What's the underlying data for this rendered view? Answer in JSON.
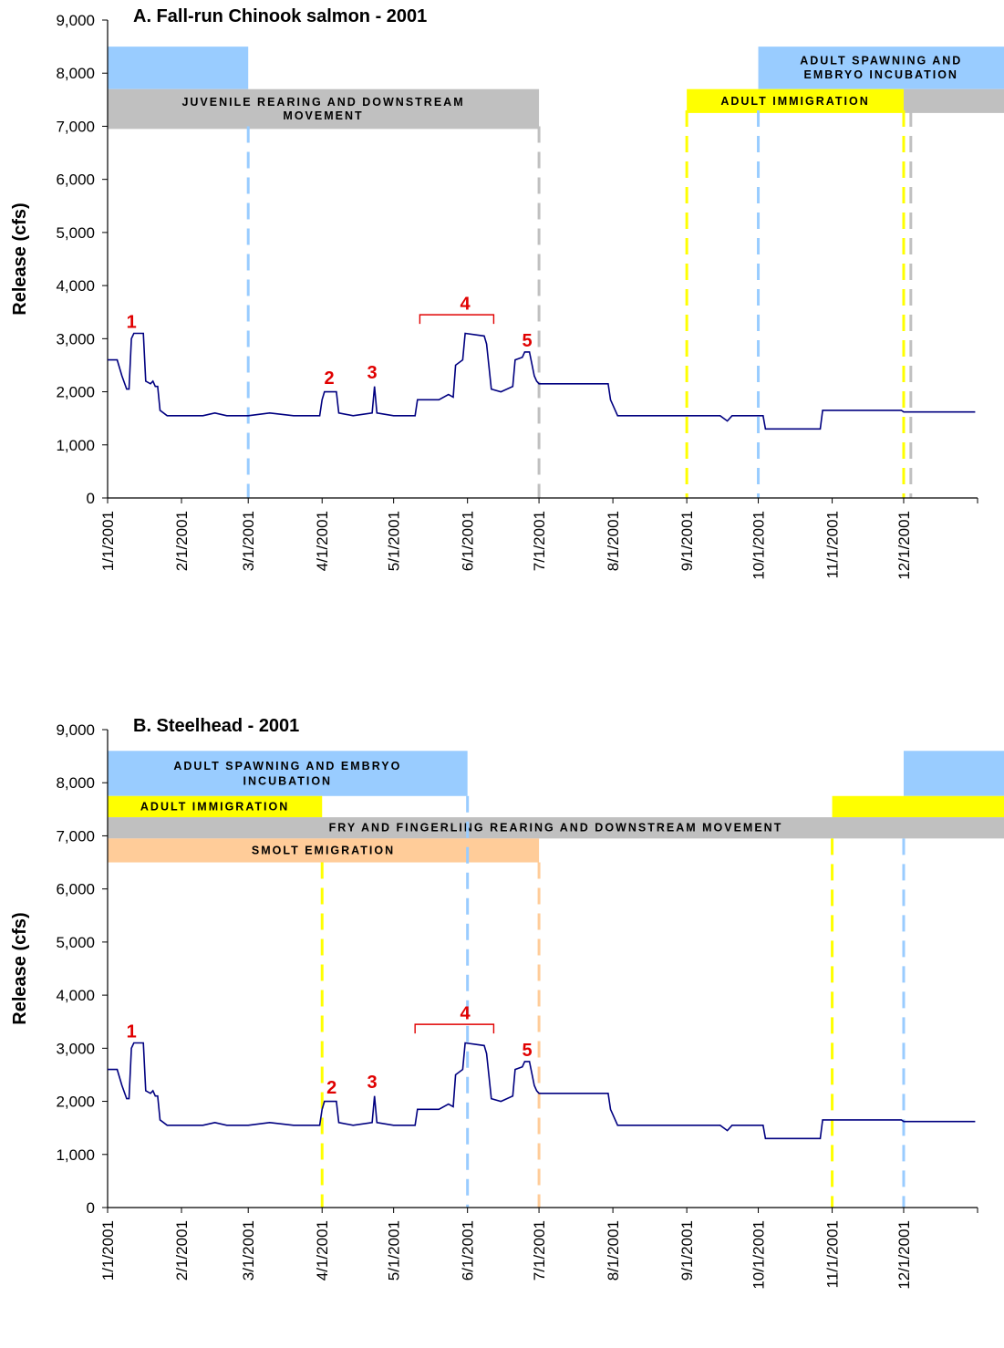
{
  "chart_data": [
    {
      "type": "line",
      "title": "A.  Fall-run Chinook salmon - 2001",
      "ylabel": "Release (cfs)",
      "xlabel": "",
      "ylim": [
        0,
        9000
      ],
      "yticks": [
        "0",
        "1,000",
        "2,000",
        "3,000",
        "4,000",
        "5,000",
        "6,000",
        "7,000",
        "8,000",
        "9,000"
      ],
      "xticks": [
        "1/1/2001",
        "2/1/2001",
        "3/1/2001",
        "4/1/2001",
        "5/1/2001",
        "6/1/2001",
        "7/1/2001",
        "8/1/2001",
        "9/1/2001",
        "10/1/2001",
        "11/1/2001",
        "12/1/2001"
      ],
      "grid": false,
      "series": [
        {
          "color": "#000080",
          "points": [
            [
              "1/1/2001",
              2600
            ],
            [
              "1/5/2001",
              2600
            ],
            [
              "1/7/2001",
              2300
            ],
            [
              "1/9/2001",
              2050
            ],
            [
              "1/10/2001",
              2050
            ],
            [
              "1/11/2001",
              3000
            ],
            [
              "1/12/2001",
              3100
            ],
            [
              "1/16/2001",
              3100
            ],
            [
              "1/17/2001",
              2200
            ],
            [
              "1/19/2001",
              2150
            ],
            [
              "1/20/2001",
              2200
            ],
            [
              "1/21/2001",
              2100
            ],
            [
              "1/22/2001",
              2100
            ],
            [
              "1/23/2001",
              1650
            ],
            [
              "1/26/2001",
              1550
            ],
            [
              "2/10/2001",
              1550
            ],
            [
              "2/15/2001",
              1600
            ],
            [
              "2/20/2001",
              1550
            ],
            [
              "3/1/2001",
              1550
            ],
            [
              "3/10/2001",
              1600
            ],
            [
              "3/20/2001",
              1550
            ],
            [
              "3/31/2001",
              1550
            ],
            [
              "4/1/2001",
              1850
            ],
            [
              "4/2/2001",
              2000
            ],
            [
              "4/7/2001",
              2000
            ],
            [
              "4/8/2001",
              1600
            ],
            [
              "4/14/2001",
              1550
            ],
            [
              "4/22/2001",
              1600
            ],
            [
              "4/23/2001",
              2100
            ],
            [
              "4/24/2001",
              1600
            ],
            [
              "5/1/2001",
              1550
            ],
            [
              "5/10/2001",
              1550
            ],
            [
              "5/11/2001",
              1850
            ],
            [
              "5/20/2001",
              1850
            ],
            [
              "5/24/2001",
              1950
            ],
            [
              "5/26/2001",
              1900
            ],
            [
              "5/27/2001",
              2500
            ],
            [
              "5/30/2001",
              2600
            ],
            [
              "5/31/2001",
              3100
            ],
            [
              "6/8/2001",
              3050
            ],
            [
              "6/9/2001",
              2900
            ],
            [
              "6/11/2001",
              2050
            ],
            [
              "6/15/2001",
              2000
            ],
            [
              "6/20/2001",
              2100
            ],
            [
              "6/21/2001",
              2600
            ],
            [
              "6/24/2001",
              2650
            ],
            [
              "6/25/2001",
              2750
            ],
            [
              "6/27/2001",
              2750
            ],
            [
              "6/29/2001",
              2300
            ],
            [
              "6/30/2001",
              2200
            ],
            [
              "7/1/2001",
              2150
            ],
            [
              "7/15/2001",
              2150
            ],
            [
              "7/30/2001",
              2150
            ],
            [
              "7/31/2001",
              1850
            ],
            [
              "8/3/2001",
              1550
            ],
            [
              "8/15/2001",
              1550
            ],
            [
              "9/1/2001",
              1550
            ],
            [
              "9/15/2001",
              1550
            ],
            [
              "9/18/2001",
              1450
            ],
            [
              "9/20/2001",
              1550
            ],
            [
              "10/3/2001",
              1550
            ],
            [
              "10/4/2001",
              1300
            ],
            [
              "10/27/2001",
              1300
            ],
            [
              "10/28/2001",
              1650
            ],
            [
              "11/30/2001",
              1650
            ],
            [
              "12/1/2001",
              1620
            ],
            [
              "12/31/2001",
              1620
            ]
          ]
        }
      ],
      "bands": [
        {
          "label_lines": [],
          "start": "1/1/2001",
          "end": "3/1/2001",
          "y_top": 8500,
          "y_bottom": 7700,
          "color": "#99ccff"
        },
        {
          "label_lines": [
            "JUVENILE REARING AND DOWNSTREAM",
            "MOVEMENT"
          ],
          "start": "1/1/2001",
          "end": "7/1/2001",
          "y_top": 7700,
          "y_bottom": 6950,
          "color": "#c0c0c0"
        },
        {
          "label_lines": [
            "ADULT SPAWNING AND",
            "EMBRYO INCUBATION"
          ],
          "start": "10/1/2001",
          "end": "12/31/2001",
          "y_top": 8500,
          "y_bottom": 7700,
          "color": "#99ccff"
        },
        {
          "label_lines": [
            "ADULT IMMIGRATION"
          ],
          "start": "9/1/2001",
          "end": "12/1/2001",
          "y_top": 7700,
          "y_bottom": 7250,
          "color": "#ffff00"
        },
        {
          "label_lines": [],
          "start": "12/1/2001",
          "end": "12/31/2001",
          "y_top": 7700,
          "y_bottom": 7250,
          "color": "#c0c0c0"
        }
      ],
      "vlines": [
        {
          "x": "3/1/2001",
          "color": "#99ccff",
          "y_top": 7000
        },
        {
          "x": "7/1/2001",
          "color": "#c0c0c0",
          "y_top": 7000
        },
        {
          "x": "9/1/2001",
          "color": "#ffff00",
          "y_top": 7300
        },
        {
          "x": "10/1/2001",
          "color": "#99ccff",
          "y_top": 7300
        },
        {
          "x": "12/1/2001",
          "color": "#ffff00",
          "y_top": 7300
        },
        {
          "x": "12/4/2001",
          "color": "#c0c0c0",
          "y_top": 7300
        }
      ],
      "annotations": [
        {
          "text": "1",
          "x": "1/11/2001",
          "y": 3200
        },
        {
          "text": "2",
          "x": "4/4/2001",
          "y": 2150
        },
        {
          "text": "3",
          "x": "4/22/2001",
          "y": 2250
        },
        {
          "text": "4",
          "x": "5/31/2001",
          "y": 3550
        },
        {
          "text": "5",
          "x": "6/26/2001",
          "y": 2850
        }
      ],
      "bracket": {
        "x_start": "5/12/2001",
        "x_end": "6/12/2001",
        "y": 3450,
        "color": "#e00000"
      }
    },
    {
      "type": "line",
      "title": "B.  Steelhead - 2001",
      "ylabel": "Release (cfs)",
      "xlabel": "",
      "ylim": [
        0,
        9000
      ],
      "yticks": [
        "0",
        "1,000",
        "2,000",
        "3,000",
        "4,000",
        "5,000",
        "6,000",
        "7,000",
        "8,000",
        "9,000"
      ],
      "xticks": [
        "1/1/2001",
        "2/1/2001",
        "3/1/2001",
        "4/1/2001",
        "5/1/2001",
        "6/1/2001",
        "7/1/2001",
        "8/1/2001",
        "9/1/2001",
        "10/1/2001",
        "11/1/2001",
        "12/1/2001"
      ],
      "grid": false,
      "series": [
        {
          "color": "#000080",
          "points": [
            [
              "1/1/2001",
              2600
            ],
            [
              "1/5/2001",
              2600
            ],
            [
              "1/7/2001",
              2300
            ],
            [
              "1/9/2001",
              2050
            ],
            [
              "1/10/2001",
              2050
            ],
            [
              "1/11/2001",
              3000
            ],
            [
              "1/12/2001",
              3100
            ],
            [
              "1/16/2001",
              3100
            ],
            [
              "1/17/2001",
              2200
            ],
            [
              "1/19/2001",
              2150
            ],
            [
              "1/20/2001",
              2200
            ],
            [
              "1/21/2001",
              2100
            ],
            [
              "1/22/2001",
              2100
            ],
            [
              "1/23/2001",
              1650
            ],
            [
              "1/26/2001",
              1550
            ],
            [
              "2/10/2001",
              1550
            ],
            [
              "2/15/2001",
              1600
            ],
            [
              "2/20/2001",
              1550
            ],
            [
              "3/1/2001",
              1550
            ],
            [
              "3/10/2001",
              1600
            ],
            [
              "3/20/2001",
              1550
            ],
            [
              "3/31/2001",
              1550
            ],
            [
              "4/1/2001",
              1850
            ],
            [
              "4/2/2001",
              2000
            ],
            [
              "4/7/2001",
              2000
            ],
            [
              "4/8/2001",
              1600
            ],
            [
              "4/14/2001",
              1550
            ],
            [
              "4/22/2001",
              1600
            ],
            [
              "4/23/2001",
              2100
            ],
            [
              "4/24/2001",
              1600
            ],
            [
              "5/1/2001",
              1550
            ],
            [
              "5/10/2001",
              1550
            ],
            [
              "5/11/2001",
              1850
            ],
            [
              "5/20/2001",
              1850
            ],
            [
              "5/24/2001",
              1950
            ],
            [
              "5/26/2001",
              1900
            ],
            [
              "5/27/2001",
              2500
            ],
            [
              "5/30/2001",
              2600
            ],
            [
              "5/31/2001",
              3100
            ],
            [
              "6/8/2001",
              3050
            ],
            [
              "6/9/2001",
              2900
            ],
            [
              "6/11/2001",
              2050
            ],
            [
              "6/15/2001",
              2000
            ],
            [
              "6/20/2001",
              2100
            ],
            [
              "6/21/2001",
              2600
            ],
            [
              "6/24/2001",
              2650
            ],
            [
              "6/25/2001",
              2750
            ],
            [
              "6/27/2001",
              2750
            ],
            [
              "6/29/2001",
              2300
            ],
            [
              "6/30/2001",
              2200
            ],
            [
              "7/1/2001",
              2150
            ],
            [
              "7/15/2001",
              2150
            ],
            [
              "7/30/2001",
              2150
            ],
            [
              "7/31/2001",
              1850
            ],
            [
              "8/3/2001",
              1550
            ],
            [
              "8/15/2001",
              1550
            ],
            [
              "9/1/2001",
              1550
            ],
            [
              "9/15/2001",
              1550
            ],
            [
              "9/18/2001",
              1450
            ],
            [
              "9/20/2001",
              1550
            ],
            [
              "10/3/2001",
              1550
            ],
            [
              "10/4/2001",
              1300
            ],
            [
              "10/27/2001",
              1300
            ],
            [
              "10/28/2001",
              1650
            ],
            [
              "11/30/2001",
              1650
            ],
            [
              "12/1/2001",
              1620
            ],
            [
              "12/31/2001",
              1620
            ]
          ]
        }
      ],
      "bands": [
        {
          "label_lines": [
            "ADULT SPAWNING AND EMBRYO",
            "INCUBATION"
          ],
          "start": "1/1/2001",
          "end": "6/1/2001",
          "y_top": 8600,
          "y_bottom": 7750,
          "color": "#99ccff"
        },
        {
          "label_lines": [],
          "start": "12/1/2001",
          "end": "12/31/2001",
          "y_top": 8600,
          "y_bottom": 7750,
          "color": "#99ccff"
        },
        {
          "label_lines": [
            "ADULT IMMIGRATION"
          ],
          "start": "1/1/2001",
          "end": "4/1/2001",
          "y_top": 7750,
          "y_bottom": 7350,
          "color": "#ffff00"
        },
        {
          "label_lines": [],
          "start": "11/1/2001",
          "end": "12/31/2001",
          "y_top": 7750,
          "y_bottom": 7350,
          "color": "#ffff00"
        },
        {
          "label_lines": [
            "FRY AND FINGERLING REARING AND DOWNSTREAM MOVEMENT"
          ],
          "start": "1/1/2001",
          "end": "12/31/2001",
          "y_top": 7350,
          "y_bottom": 6950,
          "color": "#c0c0c0"
        },
        {
          "label_lines": [
            "SMOLT EMIGRATION"
          ],
          "start": "1/1/2001",
          "end": "7/1/2001",
          "y_top": 6950,
          "y_bottom": 6500,
          "color": "#ffcc99"
        }
      ],
      "vlines": [
        {
          "x": "4/1/2001",
          "color": "#ffff00",
          "y_top": 6500
        },
        {
          "x": "6/1/2001",
          "color": "#99ccff",
          "y_top": 7750
        },
        {
          "x": "7/1/2001",
          "color": "#ffcc99",
          "y_top": 6500
        },
        {
          "x": "11/1/2001",
          "color": "#ffff00",
          "y_top": 6950
        },
        {
          "x": "12/1/2001",
          "color": "#99ccff",
          "y_top": 6950
        }
      ],
      "annotations": [
        {
          "text": "1",
          "x": "1/11/2001",
          "y": 3200
        },
        {
          "text": "2",
          "x": "4/5/2001",
          "y": 2150
        },
        {
          "text": "3",
          "x": "4/22/2001",
          "y": 2250
        },
        {
          "text": "4",
          "x": "5/31/2001",
          "y": 3550
        },
        {
          "text": "5",
          "x": "6/26/2001",
          "y": 2850
        }
      ],
      "bracket": {
        "x_start": "5/10/2001",
        "x_end": "6/12/2001",
        "y": 3450,
        "color": "#e00000"
      }
    }
  ],
  "annotation_color": "#e00000",
  "axis_color": "#000000"
}
